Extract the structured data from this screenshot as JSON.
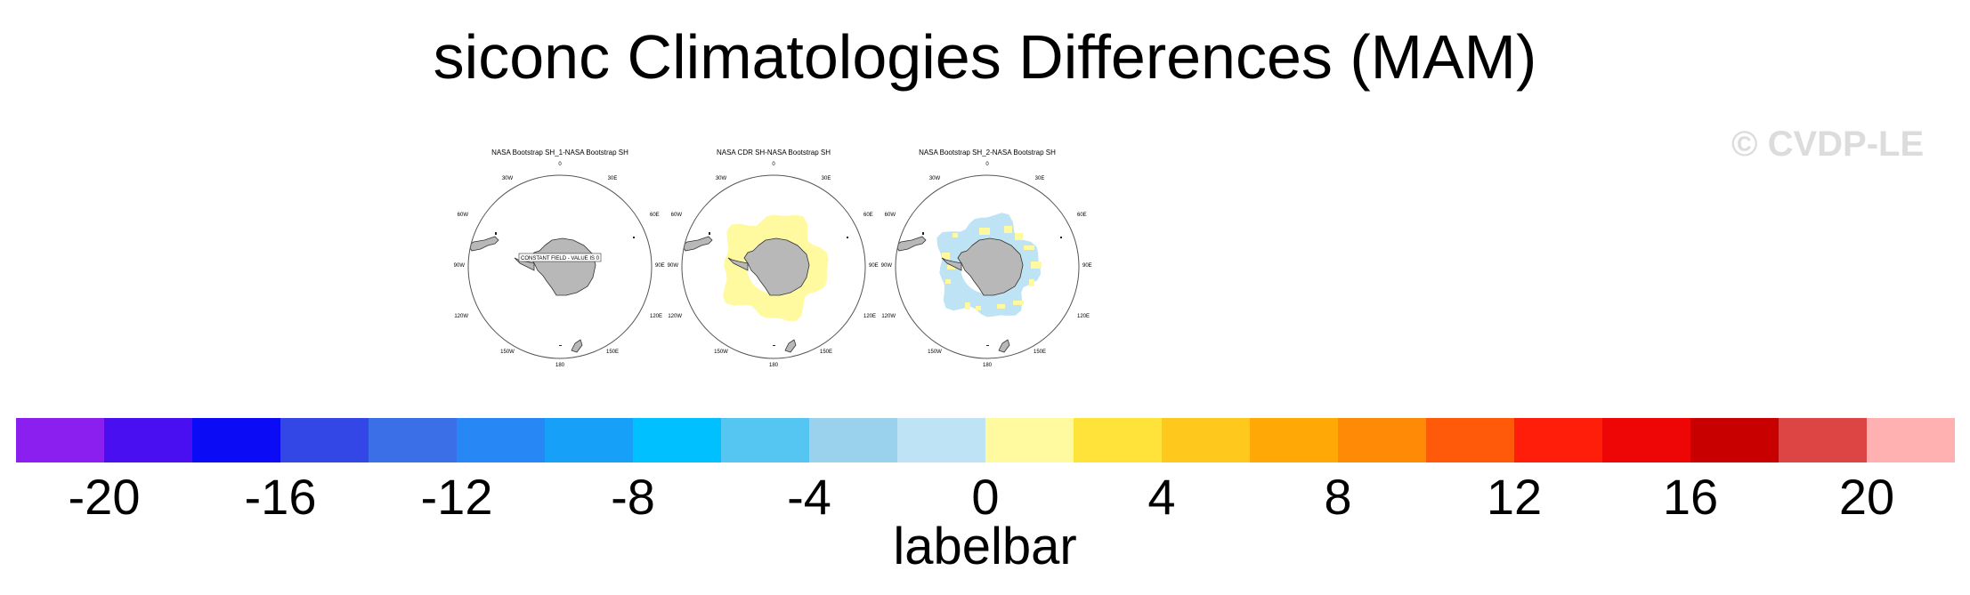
{
  "title": "siconc Climatologies Differences (MAM)",
  "watermark": "© CVDP-LE",
  "panels": [
    {
      "title": "NASA Bootstrap SH_1-NASA Bootstrap SH",
      "note": "CONSTANT FIELD - VALUE IS 0"
    },
    {
      "title": "NASA CDR SH-NASA Bootstrap SH"
    },
    {
      "title": "NASA Bootstrap SH_2-NASA Bootstrap SH"
    }
  ],
  "lon_labels": {
    "l0": "0",
    "l30e": "30E",
    "l60e": "60E",
    "l90e": "90E",
    "l120e": "120E",
    "l150e": "150E",
    "l180": "180",
    "l150w": "150W",
    "l120w": "120W",
    "l90w": "90W",
    "l60w": "60W",
    "l30w": "30W"
  },
  "colors": {
    "land": "#b8b8b8",
    "positive_small": "#fff9a0",
    "negative_small": "#bde3f5"
  },
  "labelbar": {
    "caption": "labelbar",
    "colors": [
      "#8a1ff0",
      "#4a0ff0",
      "#0b0bf5",
      "#3346e6",
      "#3b6fe8",
      "#2787f5",
      "#17a0f7",
      "#00c0ff",
      "#55c6f2",
      "#9ad2ee",
      "#bde3f5",
      "#fff9a0",
      "#ffe23a",
      "#ffc81c",
      "#ffa806",
      "#ff8a06",
      "#ff5a0a",
      "#ff1e0a",
      "#ee0505",
      "#c90000",
      "#dd4444",
      "#ffb0b0"
    ],
    "ticks": [
      "-20",
      "-16",
      "-12",
      "-8",
      "-4",
      "0",
      "4",
      "8",
      "12",
      "16",
      "20"
    ]
  }
}
